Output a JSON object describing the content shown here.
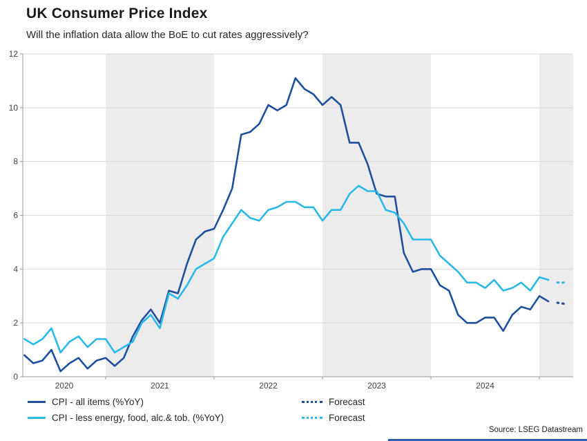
{
  "header": {
    "title": "UK Consumer Price Index",
    "subtitle": "Will the inflation data allow the BoE to cut rates aggressively?"
  },
  "source": "Source: LSEG Datastream",
  "accent_bar_color": "#2d5fa8",
  "colors": {
    "cpi_all_items": "#1d4f9e",
    "cpi_core": "#29b8e8",
    "band_gray": "#ececec",
    "gridline": "#d9d9d9",
    "axis_line": "#999999"
  },
  "chart_data": {
    "type": "line",
    "title": "UK Consumer Price Index",
    "subtitle": "Will the inflation data allow the BoE to cut rates aggressively?",
    "x_unit": "month",
    "start_month": "2020-04",
    "year_ticks": [
      2020,
      2021,
      2022,
      2023,
      2024
    ],
    "shaded_years": [
      2021,
      2023,
      2025
    ],
    "ylim": [
      0,
      12
    ],
    "yticks": [
      0,
      2,
      4,
      6,
      8,
      10,
      12
    ],
    "grid": true,
    "legend_position": "bottom",
    "series": [
      {
        "name": "CPI - all items (%YoY)",
        "color": "#1d4f9e",
        "values": [
          0.8,
          0.5,
          0.6,
          1.0,
          0.2,
          0.5,
          0.7,
          0.3,
          0.6,
          0.7,
          0.4,
          0.7,
          1.5,
          2.1,
          2.5,
          2.0,
          3.2,
          3.1,
          4.2,
          5.1,
          5.4,
          5.5,
          6.2,
          7.0,
          9.0,
          9.1,
          9.4,
          10.1,
          9.9,
          10.1,
          11.1,
          10.7,
          10.5,
          10.1,
          10.4,
          10.1,
          8.7,
          8.7,
          7.9,
          6.8,
          6.7,
          6.7,
          4.6,
          3.9,
          4.0,
          4.0,
          3.4,
          3.2,
          2.3,
          2.0,
          2.0,
          2.2,
          2.2,
          1.7,
          2.3,
          2.6,
          2.5,
          3.0,
          2.8
        ]
      },
      {
        "name": "CPI - less energy, food, alc.& tob. (%YoY)",
        "color": "#29b8e8",
        "values": [
          1.4,
          1.2,
          1.4,
          1.8,
          0.9,
          1.3,
          1.5,
          1.1,
          1.4,
          1.4,
          0.9,
          1.1,
          1.3,
          2.0,
          2.3,
          1.8,
          3.1,
          2.9,
          3.4,
          4.0,
          4.2,
          4.4,
          5.2,
          5.7,
          6.2,
          5.9,
          5.8,
          6.2,
          6.3,
          6.5,
          6.5,
          6.3,
          6.3,
          5.8,
          6.2,
          6.2,
          6.8,
          7.1,
          6.9,
          6.9,
          6.2,
          6.1,
          5.7,
          5.1,
          5.1,
          5.1,
          4.5,
          4.2,
          3.9,
          3.5,
          3.5,
          3.3,
          3.6,
          3.2,
          3.3,
          3.5,
          3.2,
          3.7,
          3.6
        ]
      }
    ],
    "forecast": [
      {
        "name": "Forecast",
        "color": "#1d4f9e",
        "values": [
          2.75,
          2.7
        ]
      },
      {
        "name": "Forecast",
        "color": "#29b8e8",
        "values": [
          3.5,
          3.5
        ]
      }
    ]
  },
  "legend": {
    "items": [
      {
        "label": "CPI - all items (%YoY)",
        "style": "solid",
        "color": "#1d4f9e"
      },
      {
        "label": "CPI - less energy, food, alc.& tob. (%YoY)",
        "style": "solid",
        "color": "#29b8e8"
      },
      {
        "label": "Forecast",
        "style": "dotted",
        "color": "#1d4f9e"
      },
      {
        "label": "Forecast",
        "style": "dotted",
        "color": "#29b8e8"
      }
    ]
  }
}
